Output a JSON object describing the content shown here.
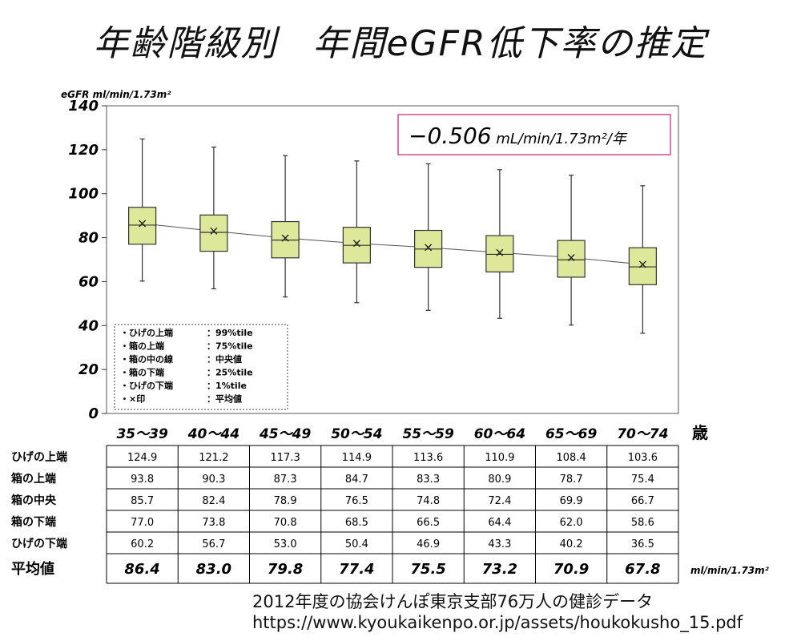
{
  "title_part1": "年齢階級別",
  "title_part2": "年間eGFR低下率の推定",
  "rate_box": {
    "value": "−0.506",
    "unit": " mL/min/1.73m²/年"
  },
  "source_line1": "2012年度の協会けんぽ東京支部76万人の健診データ",
  "source_line2": "https://www.kyoukaikenpo.or.jp/assets/houkokusho_15.pdf",
  "legend": [
    [
      "・ひげの上端",
      "：99%tile"
    ],
    [
      "・箱の上端",
      "：75%tile"
    ],
    [
      "・箱の中の線",
      "：中央値"
    ],
    [
      "・箱の下端",
      "：25%tile"
    ],
    [
      "・ひげの下端",
      "：1%tile"
    ],
    [
      "・×印",
      "：平均値"
    ]
  ],
  "table": {
    "rows": [
      {
        "label": "ひげの上端",
        "values": [
          "124.9",
          "121.2",
          "117.3",
          "114.9",
          "113.6",
          "110.9",
          "108.4",
          "103.6"
        ]
      },
      {
        "label": "箱の上端",
        "values": [
          "93.8",
          "90.3",
          "87.3",
          "84.7",
          "83.3",
          "80.9",
          "78.7",
          "75.4"
        ]
      },
      {
        "label": "箱の中央",
        "values": [
          "85.7",
          "82.4",
          "78.9",
          "76.5",
          "74.8",
          "72.4",
          "69.9",
          "66.7"
        ]
      },
      {
        "label": "箱の下端",
        "values": [
          "77.0",
          "73.8",
          "70.8",
          "68.5",
          "66.5",
          "64.4",
          "62.0",
          "58.6"
        ]
      },
      {
        "label": "ひげの下端",
        "values": [
          "60.2",
          "56.7",
          "53.0",
          "50.4",
          "46.9",
          "43.3",
          "40.2",
          "36.5"
        ]
      }
    ],
    "mean_row": {
      "label": "平均値",
      "values": [
        "86.4",
        "83.0",
        "79.8",
        "77.4",
        "75.5",
        "73.2",
        "70.9",
        "67.8"
      ],
      "unit": "ml/min/1.73m²"
    }
  },
  "colors": {
    "box_fill": "#dde89a",
    "rate_border": "#d24a92",
    "grid": "#000000"
  },
  "chart_data": {
    "type": "box",
    "ylabel": "eGFR ml/min/1.73m²",
    "xlabel": "歳",
    "ylim": [
      0,
      140
    ],
    "yticks": [
      0,
      20,
      40,
      60,
      80,
      100,
      120,
      140
    ],
    "categories": [
      "35～39",
      "40～44",
      "45～49",
      "50～54",
      "55～59",
      "60～64",
      "65～69",
      "70～74"
    ],
    "whisker_high": [
      124.9,
      121.2,
      117.3,
      114.9,
      113.6,
      110.9,
      108.4,
      103.6
    ],
    "box_high": [
      93.8,
      90.3,
      87.3,
      84.7,
      83.3,
      80.9,
      78.7,
      75.4
    ],
    "median": [
      85.7,
      82.4,
      78.9,
      76.5,
      74.8,
      72.4,
      69.9,
      66.7
    ],
    "box_low": [
      77.0,
      73.8,
      70.8,
      68.5,
      66.5,
      64.4,
      62.0,
      58.6
    ],
    "whisker_low": [
      60.2,
      56.7,
      53.0,
      50.4,
      46.9,
      43.3,
      40.2,
      36.5
    ],
    "mean": [
      86.4,
      83.0,
      79.8,
      77.4,
      75.5,
      73.2,
      70.9,
      67.8
    ],
    "trend_slope": -0.506
  }
}
